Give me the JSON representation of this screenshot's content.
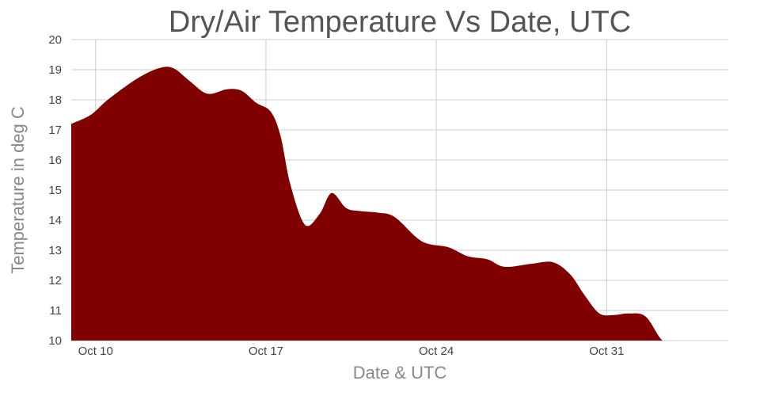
{
  "chart_data": {
    "type": "area",
    "title": "Dry/Air Temperature Vs Date, UTC",
    "xlabel": "Date & UTC",
    "ylabel": "Temperature in deg C",
    "x_ticks": [
      {
        "label": "Oct 10",
        "day": 10
      },
      {
        "label": "Oct 17",
        "day": 17
      },
      {
        "label": "Oct 24",
        "day": 24
      },
      {
        "label": "Oct 31",
        "day": 31
      }
    ],
    "xlim": [
      9,
      36
    ],
    "ylim": [
      10,
      20
    ],
    "y_ticks": [
      10,
      11,
      12,
      13,
      14,
      15,
      16,
      17,
      18,
      19,
      20
    ],
    "grid": true,
    "fill_color": "#800000",
    "series": [
      {
        "x": [
          9.0,
          9.8,
          10.5,
          11.7,
          12.6,
          13.2,
          13.9,
          14.6,
          15.4,
          16.0,
          16.6,
          17.2,
          17.6,
          18.0,
          18.6,
          19.2,
          19.7,
          20.3,
          20.9,
          21.6,
          22.3,
          23.4,
          24.5,
          25.3,
          26.1,
          26.8,
          27.9,
          28.8,
          29.5,
          30.1,
          30.7,
          31.3,
          31.9,
          32.6,
          33.3,
          33.9,
          34.6,
          35.3,
          36.0
        ],
        "y": [
          17.2,
          17.5,
          18.0,
          18.7,
          19.05,
          19.05,
          18.6,
          18.2,
          18.35,
          18.3,
          17.9,
          17.6,
          16.8,
          15.2,
          13.85,
          14.2,
          14.9,
          14.4,
          14.3,
          14.25,
          14.1,
          13.3,
          13.1,
          12.8,
          12.7,
          12.45,
          12.55,
          12.6,
          12.2,
          11.5,
          10.9,
          10.85,
          10.9,
          10.8,
          10.0,
          10.0,
          10.0,
          10.0,
          10.0
        ]
      }
    ]
  }
}
